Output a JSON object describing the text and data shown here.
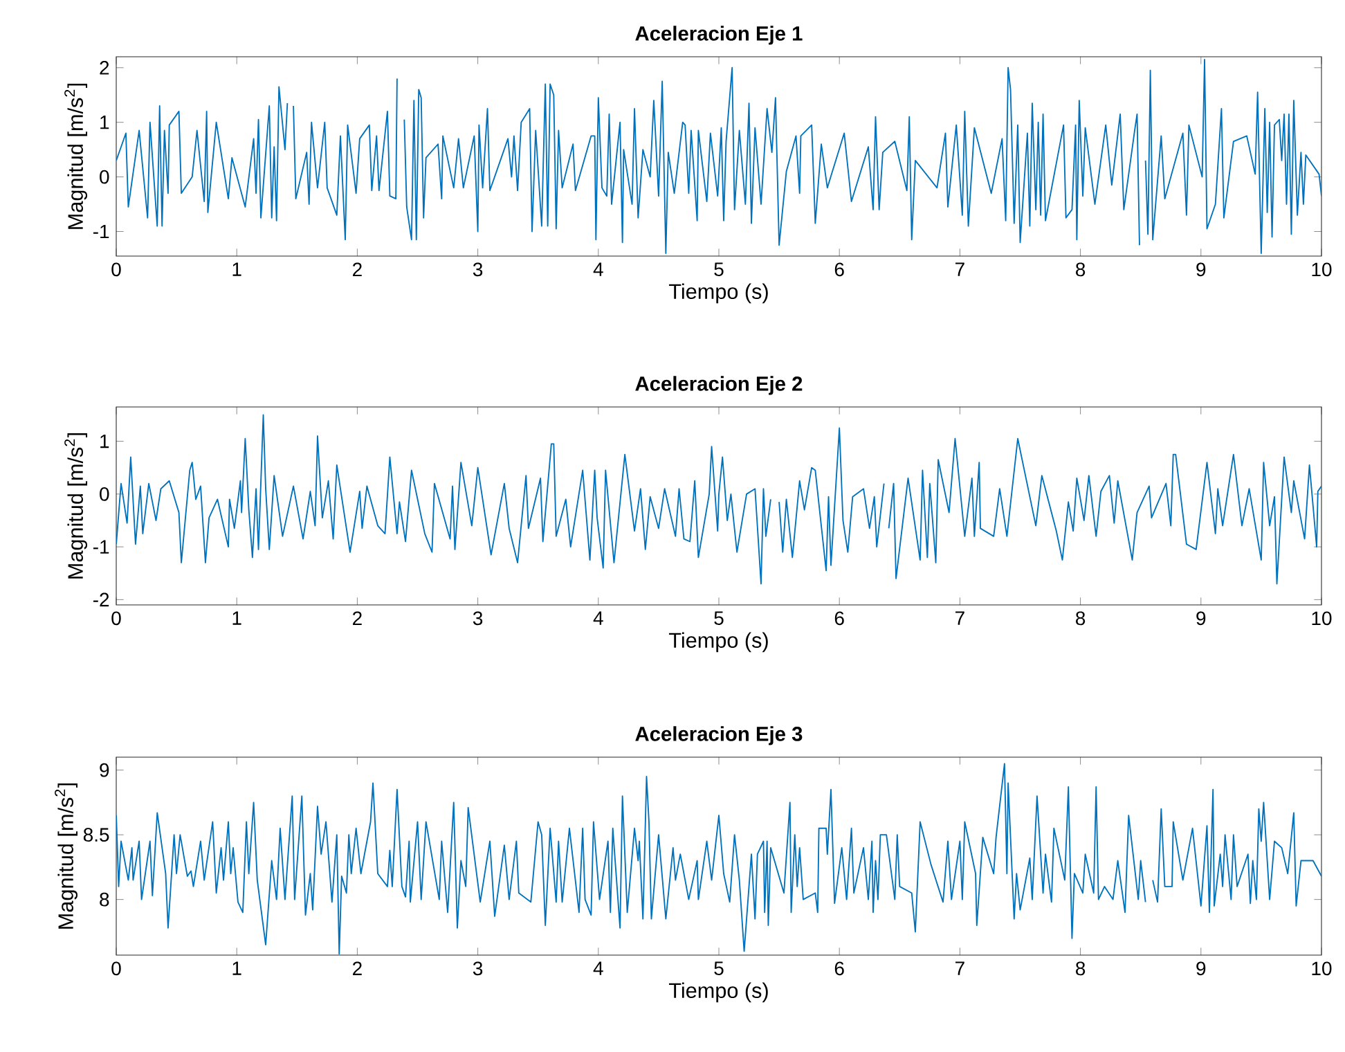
{
  "chart_data": [
    {
      "type": "line",
      "title": "Aceleracion Eje 1",
      "xlabel": "Tiempo (s)",
      "ylabel": "Magnitud [m/s$^{2}$]",
      "xlim": [
        0,
        10
      ],
      "ylim": [
        -1.45,
        2.2
      ],
      "xticks": [
        0,
        1,
        2,
        3,
        4,
        5,
        6,
        7,
        8,
        9,
        10
      ],
      "yticks": [
        -1,
        0,
        1,
        2
      ],
      "series": [
        {
          "color": "#0072bd",
          "x": [
            0.0,
            0.08,
            0.1,
            0.19,
            0.26,
            0.28,
            0.34,
            0.36,
            0.38,
            0.4,
            0.43,
            0.44,
            0.52,
            0.54,
            0.63,
            0.67,
            0.73,
            0.75,
            0.76,
            0.83,
            0.93,
            0.96,
            1.07,
            1.14,
            1.16,
            1.18,
            1.2,
            1.27,
            1.29,
            1.31,
            1.33,
            1.35,
            1.4,
            1.42,
            1.44,
            1.47,
            1.49,
            1.58,
            1.6,
            1.62,
            1.67,
            1.73,
            1.75,
            1.83,
            1.86,
            1.9,
            1.92,
            1.99,
            2.02,
            2.1,
            2.12,
            2.16,
            2.18,
            2.25,
            2.27,
            2.32,
            2.33,
            2.37,
            2.39,
            2.41,
            2.45,
            2.47,
            2.49,
            2.51,
            2.53,
            2.55,
            2.57,
            2.67,
            2.7,
            2.71,
            2.8,
            2.84,
            2.88,
            2.97,
            3.0,
            3.01,
            3.04,
            3.08,
            3.1,
            3.25,
            3.28,
            3.3,
            3.33,
            3.36,
            3.43,
            3.45,
            3.48,
            3.53,
            3.56,
            3.58,
            3.6,
            3.63,
            3.65,
            3.67,
            3.7,
            3.79,
            3.81,
            3.94,
            3.97,
            3.98,
            4.0,
            4.03,
            4.07,
            4.09,
            4.11,
            4.18,
            4.2,
            4.21,
            4.28,
            4.3,
            4.33,
            4.37,
            4.43,
            4.46,
            4.5,
            4.53,
            4.56,
            4.58,
            4.63,
            4.7,
            4.72,
            4.75,
            4.77,
            4.82,
            4.83,
            4.9,
            4.93,
            4.99,
            5.02,
            5.04,
            5.06,
            5.11,
            5.13,
            5.17,
            5.22,
            5.25,
            5.27,
            5.3,
            5.35,
            5.4,
            5.44,
            5.47,
            5.5,
            5.56,
            5.64,
            5.67,
            5.68,
            5.77,
            5.8,
            5.85,
            5.9,
            6.04,
            6.1,
            6.24,
            6.28,
            6.3,
            6.33,
            6.36,
            6.46,
            6.56,
            6.58,
            6.6,
            6.63,
            6.81,
            6.88,
            6.9,
            6.97,
            7.02,
            7.04,
            7.07,
            7.12,
            7.26,
            7.35,
            7.38,
            7.4,
            7.42,
            7.45,
            7.48,
            7.5,
            7.56,
            7.58,
            7.6,
            7.63,
            7.65,
            7.67,
            7.69,
            7.71,
            7.86,
            7.88,
            7.93,
            7.96,
            7.97,
            7.99,
            8.02,
            8.04,
            8.12,
            8.21,
            8.26,
            8.33,
            8.36,
            8.45,
            8.47,
            8.49,
            8.51,
            8.54,
            8.56,
            8.58,
            8.6,
            8.67,
            8.7,
            8.85,
            8.88,
            8.9,
            9.01,
            9.03,
            9.05,
            9.12,
            9.17,
            9.19,
            9.27,
            9.38,
            9.45,
            9.47,
            9.5,
            9.53,
            9.55,
            9.57,
            9.59,
            9.61,
            9.65,
            9.67,
            9.69,
            9.71,
            9.73,
            9.75,
            9.77,
            9.8,
            9.83,
            9.85,
            9.87,
            9.98,
            10.0
          ],
          "values": [
            0.3,
            0.8,
            -0.55,
            0.85,
            -0.75,
            1.0,
            -0.9,
            1.3,
            -0.9,
            0.85,
            -0.3,
            0.95,
            1.2,
            -0.3,
            0.0,
            0.85,
            -0.45,
            1.2,
            -0.65,
            1.0,
            -0.4,
            0.35,
            -0.55,
            0.7,
            -0.3,
            1.05,
            -0.75,
            1.3,
            -0.75,
            0.55,
            -0.8,
            1.65,
            0.5,
            1.35,
            null,
            1.3,
            -0.4,
            0.45,
            -0.5,
            1.0,
            -0.2,
            1.0,
            -0.2,
            -0.7,
            0.75,
            -1.15,
            0.95,
            -0.3,
            0.7,
            0.95,
            -0.25,
            0.75,
            -0.25,
            1.2,
            -0.35,
            -0.4,
            1.8,
            null,
            1.05,
            -0.55,
            -1.15,
            1.4,
            -1.15,
            1.6,
            1.45,
            -0.75,
            0.35,
            0.6,
            -0.4,
            0.75,
            -0.2,
            0.7,
            -0.2,
            0.75,
            -1.0,
            0.95,
            -0.2,
            1.25,
            -0.25,
            0.7,
            0.0,
            0.75,
            -0.25,
            1.0,
            1.25,
            -1.0,
            0.85,
            -0.9,
            1.7,
            -0.9,
            1.7,
            1.5,
            -0.95,
            0.85,
            -0.2,
            0.6,
            -0.25,
            0.75,
            0.75,
            -1.15,
            1.45,
            -0.2,
            -0.35,
            1.15,
            -0.5,
            1.0,
            -1.2,
            0.5,
            -0.5,
            1.25,
            -0.75,
            0.5,
            0.0,
            1.4,
            -0.35,
            1.75,
            -1.4,
            0.45,
            -0.3,
            1.0,
            0.95,
            -0.3,
            0.85,
            -0.8,
            0.85,
            -0.45,
            0.8,
            -0.35,
            0.9,
            -0.8,
            0.65,
            2.0,
            -0.6,
            0.85,
            -0.5,
            1.35,
            -0.85,
            0.9,
            -0.5,
            1.25,
            0.45,
            1.45,
            -1.25,
            0.1,
            0.75,
            -0.3,
            0.75,
            0.95,
            -0.85,
            0.6,
            -0.2,
            0.8,
            -0.45,
            0.55,
            -0.6,
            1.1,
            -0.6,
            0.45,
            0.65,
            -0.25,
            1.1,
            -1.15,
            0.3,
            -0.2,
            0.8,
            -0.55,
            0.95,
            -0.7,
            1.2,
            -0.9,
            0.9,
            -0.3,
            0.7,
            -0.8,
            2.0,
            1.6,
            -0.85,
            0.95,
            -1.2,
            0.8,
            -0.9,
            1.35,
            -0.6,
            1.0,
            -0.7,
            1.15,
            -0.8,
            0.95,
            -0.75,
            -0.6,
            0.95,
            -1.15,
            1.4,
            -0.35,
            0.9,
            -0.5,
            0.95,
            -0.15,
            1.15,
            -0.6,
            0.85,
            1.15,
            -1.25,
            null,
            0.3,
            -1.05,
            1.95,
            -1.15,
            0.75,
            -0.4,
            0.8,
            -0.7,
            0.95,
            0.0,
            2.15,
            -0.95,
            -0.5,
            1.25,
            -0.75,
            0.65,
            0.75,
            0.05,
            1.55,
            -1.4,
            1.25,
            -0.65,
            1.0,
            -1.1,
            0.95,
            1.05,
            0.3,
            1.15,
            -0.5,
            1.15,
            -1.05,
            1.4,
            -0.7,
            0.45,
            -0.5,
            0.4,
            0.05,
            -0.35
          ]
        }
      ]
    },
    {
      "type": "line",
      "title": "Aceleracion Eje 2",
      "xlabel": "Tiempo (s)",
      "ylabel": "Magnitud [m/s$^{2}$]",
      "xlim": [
        0,
        10
      ],
      "ylim": [
        -2.1,
        1.65
      ],
      "xticks": [
        0,
        1,
        2,
        3,
        4,
        5,
        6,
        7,
        8,
        9,
        10
      ],
      "yticks": [
        -2,
        -1,
        0,
        1
      ],
      "series": [
        {
          "color": "#0072bd",
          "x": [
            0.0,
            0.04,
            0.09,
            0.12,
            0.16,
            0.2,
            0.22,
            0.27,
            0.33,
            0.37,
            0.44,
            0.52,
            0.54,
            0.61,
            0.63,
            0.66,
            0.7,
            0.74,
            0.77,
            0.84,
            0.93,
            0.94,
            0.98,
            1.03,
            1.04,
            1.07,
            1.1,
            1.13,
            1.16,
            1.18,
            1.22,
            1.24,
            1.27,
            1.31,
            1.38,
            1.47,
            1.55,
            1.61,
            1.65,
            1.67,
            1.71,
            1.76,
            1.8,
            1.83,
            1.94,
            2.02,
            2.04,
            2.08,
            2.17,
            2.23,
            2.27,
            2.33,
            2.35,
            2.4,
            2.45,
            2.56,
            2.62,
            2.64,
            2.77,
            2.79,
            2.81,
            2.86,
            2.95,
            3.0,
            3.11,
            3.22,
            3.26,
            3.33,
            3.4,
            3.42,
            3.52,
            3.54,
            3.61,
            3.63,
            3.65,
            3.73,
            3.77,
            3.87,
            3.93,
            3.97,
            3.99,
            4.04,
            4.06,
            4.13,
            4.22,
            4.3,
            4.35,
            4.39,
            4.43,
            4.5,
            4.55,
            4.64,
            4.67,
            4.71,
            4.76,
            4.8,
            4.83,
            4.92,
            4.94,
            4.99,
            5.0,
            5.03,
            5.07,
            5.1,
            5.15,
            5.23,
            5.3,
            5.35,
            5.37,
            5.39,
            5.43,
            5.47,
            5.5,
            5.53,
            5.56,
            5.61,
            5.67,
            5.71,
            5.77,
            5.8,
            5.89,
            5.91,
            5.93,
            6.0,
            6.03,
            6.07,
            6.11,
            6.2,
            6.25,
            6.29,
            6.31,
            6.37,
            6.39,
            6.41,
            6.45,
            6.47,
            6.57,
            6.67,
            6.69,
            6.73,
            6.75,
            6.8,
            6.82,
            6.91,
            6.96,
            7.04,
            7.1,
            7.12,
            7.16,
            7.17,
            7.28,
            7.33,
            7.39,
            7.48,
            7.63,
            7.68,
            7.8,
            7.85,
            7.9,
            7.94,
            7.97,
            8.03,
            8.07,
            8.13,
            8.17,
            8.24,
            8.28,
            8.31,
            8.43,
            8.47,
            8.57,
            8.59,
            8.71,
            8.75,
            8.77,
            8.79,
            8.88,
            8.96,
            9.05,
            9.12,
            9.14,
            9.18,
            9.27,
            9.34,
            9.4,
            9.5,
            9.52,
            9.57,
            9.61,
            9.63,
            9.69,
            9.75,
            9.77,
            9.86,
            9.9,
            9.96,
            9.97,
            10.0
          ],
          "values": [
            -0.95,
            0.2,
            -0.55,
            0.7,
            -0.95,
            0.15,
            -0.75,
            0.2,
            -0.5,
            0.1,
            0.25,
            -0.35,
            -1.3,
            0.45,
            0.6,
            -0.1,
            0.15,
            -1.3,
            -0.45,
            -0.1,
            -1.0,
            -0.1,
            -0.65,
            0.25,
            -0.35,
            1.05,
            -0.3,
            -1.2,
            0.1,
            -1.05,
            1.5,
            0.1,
            -1.05,
            0.35,
            -0.8,
            0.15,
            -0.85,
            0.05,
            -0.6,
            1.1,
            -0.45,
            0.25,
            -0.85,
            0.55,
            -1.1,
            0.05,
            -0.65,
            0.15,
            -0.6,
            -0.75,
            0.7,
            -0.75,
            -0.15,
            -0.9,
            0.45,
            -0.75,
            -1.1,
            0.2,
            -0.85,
            0.15,
            -1.05,
            0.6,
            -0.6,
            0.5,
            -1.15,
            0.2,
            -0.65,
            -1.3,
            0.35,
            -0.65,
            0.3,
            -0.9,
            0.95,
            0.95,
            -0.8,
            -0.1,
            -1.0,
            0.45,
            -1.25,
            0.45,
            -0.45,
            -1.4,
            0.45,
            -1.3,
            0.75,
            -0.7,
            0.1,
            -1.05,
            -0.05,
            -0.65,
            0.1,
            -0.8,
            0.1,
            -0.85,
            -0.9,
            0.25,
            -1.2,
            0.0,
            0.9,
            -0.7,
            0.0,
            0.7,
            -0.5,
            0.0,
            -1.1,
            0.0,
            0.1,
            -1.7,
            0.1,
            -0.8,
            -0.1,
            null,
            -0.15,
            -1.1,
            -0.1,
            -1.2,
            0.25,
            -0.3,
            0.5,
            0.45,
            -1.45,
            -0.05,
            -1.35,
            1.25,
            -0.5,
            -1.1,
            -0.05,
            0.1,
            -0.65,
            -0.05,
            -1.0,
            0.2,
            null,
            -0.65,
            0.2,
            -1.6,
            0.3,
            -1.25,
            0.45,
            -1.2,
            0.2,
            -1.3,
            0.65,
            -0.35,
            1.05,
            -0.8,
            0.3,
            -0.8,
            0.6,
            -0.65,
            -0.8,
            0.1,
            -0.8,
            1.05,
            -0.6,
            0.35,
            -0.7,
            -1.25,
            -0.15,
            -0.7,
            0.3,
            -0.5,
            0.35,
            -0.8,
            0.05,
            0.35,
            -0.55,
            0.25,
            -1.25,
            -0.35,
            0.15,
            -0.45,
            0.2,
            -0.6,
            0.75,
            0.75,
            -0.95,
            -1.05,
            0.6,
            -0.75,
            0.1,
            -0.6,
            0.75,
            -0.6,
            0.1,
            -1.25,
            0.6,
            -0.6,
            -0.05,
            -1.7,
            0.7,
            -0.35,
            0.25,
            -0.85,
            0.55,
            -1.0,
            0.05,
            0.15
          ]
        }
      ]
    },
    {
      "type": "line",
      "title": "Aceleracion Eje 3",
      "xlabel": "Tiempo (s)",
      "ylabel": "Magnitud [m/s$^{2}$]",
      "xlim": [
        0,
        10
      ],
      "ylim": [
        7.57,
        9.1
      ],
      "xticks": [
        0,
        1,
        2,
        3,
        4,
        5,
        6,
        7,
        8,
        9,
        10
      ],
      "yticks": [
        8,
        8.5,
        9
      ],
      "series": [
        {
          "color": "#0072bd",
          "x": [
            0.0,
            0.02,
            0.04,
            0.1,
            0.13,
            0.14,
            0.19,
            0.21,
            0.28,
            0.3,
            0.34,
            0.41,
            0.43,
            0.48,
            0.5,
            0.53,
            0.59,
            0.62,
            0.64,
            0.7,
            0.73,
            0.8,
            0.83,
            0.87,
            0.89,
            0.93,
            0.95,
            0.97,
            1.01,
            1.05,
            1.08,
            1.1,
            1.14,
            1.17,
            1.24,
            1.29,
            1.33,
            1.36,
            1.4,
            1.46,
            1.48,
            1.54,
            1.57,
            1.61,
            1.63,
            1.67,
            1.7,
            1.74,
            1.79,
            1.83,
            1.85,
            1.87,
            1.91,
            1.93,
            1.95,
            1.99,
            2.03,
            2.11,
            2.13,
            2.17,
            2.25,
            2.27,
            2.29,
            2.33,
            2.37,
            2.4,
            2.43,
            2.44,
            2.5,
            2.53,
            2.57,
            2.68,
            2.7,
            2.75,
            2.8,
            2.83,
            2.86,
            2.9,
            2.92,
            3.02,
            3.1,
            3.14,
            3.22,
            3.26,
            3.32,
            3.34,
            3.44,
            3.5,
            3.53,
            3.56,
            3.6,
            3.65,
            3.67,
            3.7,
            3.76,
            3.84,
            3.87,
            3.89,
            3.94,
            3.96,
            4.01,
            4.08,
            4.1,
            4.12,
            4.18,
            4.2,
            4.24,
            4.3,
            4.33,
            4.34,
            4.37,
            4.4,
            4.42,
            4.44,
            4.5,
            4.56,
            4.62,
            4.64,
            4.68,
            4.75,
            4.82,
            4.83,
            4.9,
            4.94,
            5.0,
            5.04,
            5.09,
            5.13,
            5.17,
            5.21,
            5.27,
            5.3,
            5.32,
            5.37,
            5.38,
            5.4,
            5.41,
            5.43,
            5.54,
            5.59,
            5.6,
            5.63,
            5.65,
            5.67,
            5.7,
            5.8,
            5.82,
            5.83,
            5.89,
            5.9,
            5.93,
            5.96,
            6.02,
            6.06,
            6.1,
            6.12,
            6.2,
            6.24,
            6.27,
            6.28,
            6.3,
            6.32,
            6.34,
            6.39,
            6.46,
            6.48,
            6.5,
            6.6,
            6.63,
            6.67,
            6.76,
            6.86,
            6.9,
            6.93,
            7.0,
            7.02,
            7.04,
            7.13,
            7.14,
            7.19,
            7.28,
            7.3,
            7.37,
            7.39,
            7.4,
            7.45,
            7.47,
            7.5,
            7.58,
            7.6,
            7.64,
            7.69,
            7.71,
            7.76,
            7.78,
            7.87,
            7.9,
            7.93,
            7.95,
            8.02,
            8.04,
            8.11,
            8.13,
            8.15,
            8.2,
            8.27,
            8.31,
            8.37,
            8.4,
            8.48,
            8.5,
            8.54,
            8.58,
            8.6,
            8.64,
            8.67,
            8.7,
            8.76,
            8.77,
            8.85,
            8.93,
            9.0,
            9.05,
            9.07,
            9.1,
            9.11,
            9.16,
            9.18,
            9.2,
            9.25,
            9.27,
            9.3,
            9.39,
            9.41,
            9.43,
            9.46,
            9.48,
            9.5,
            9.52,
            9.57,
            9.61,
            9.67,
            9.72,
            9.77,
            9.79,
            9.83,
            9.93,
            10.0
          ],
          "values": [
            8.65,
            8.1,
            8.45,
            8.15,
            8.4,
            8.15,
            8.45,
            8.0,
            8.45,
            8.03,
            8.67,
            8.2,
            7.78,
            8.5,
            8.2,
            8.5,
            8.18,
            8.22,
            8.1,
            8.45,
            8.15,
            8.6,
            8.05,
            8.4,
            8.15,
            8.6,
            8.2,
            8.4,
            7.98,
            7.9,
            8.6,
            8.2,
            8.75,
            8.15,
            7.65,
            8.3,
            8.0,
            8.55,
            8.0,
            8.8,
            8.0,
            8.8,
            7.88,
            8.2,
            7.92,
            8.72,
            8.35,
            8.6,
            7.98,
            8.5,
            7.58,
            8.18,
            8.05,
            8.5,
            8.2,
            8.55,
            8.2,
            8.6,
            8.9,
            8.2,
            8.1,
            8.38,
            8.1,
            8.85,
            8.1,
            8.02,
            8.45,
            7.98,
            8.6,
            8.0,
            8.6,
            8.0,
            8.45,
            7.9,
            8.75,
            7.78,
            8.3,
            8.1,
            8.71,
            7.98,
            8.45,
            7.87,
            8.42,
            8.0,
            8.45,
            8.05,
            7.98,
            8.6,
            8.5,
            7.8,
            8.55,
            7.98,
            8.45,
            7.98,
            8.55,
            7.9,
            8.55,
            8.0,
            7.88,
            8.6,
            8.0,
            8.45,
            7.9,
            8.55,
            7.78,
            8.8,
            7.9,
            8.55,
            8.3,
            8.45,
            7.85,
            8.95,
            8.6,
            7.85,
            8.5,
            7.85,
            8.4,
            8.15,
            8.35,
            8.0,
            8.3,
            8.0,
            8.45,
            8.15,
            8.65,
            8.2,
            7.98,
            8.5,
            8.15,
            7.6,
            8.35,
            7.85,
            8.35,
            8.45,
            7.9,
            8.45,
            7.8,
            8.4,
            8.05,
            8.75,
            7.9,
            8.5,
            8.1,
            8.4,
            8.0,
            8.05,
            7.9,
            8.55,
            8.55,
            8.35,
            8.85,
            7.97,
            8.4,
            8.0,
            8.55,
            8.05,
            8.4,
            8.0,
            8.45,
            7.9,
            8.3,
            8.0,
            8.5,
            8.5,
            8.0,
            8.5,
            8.1,
            8.05,
            7.75,
            8.6,
            8.27,
            7.98,
            8.45,
            8.0,
            8.45,
            8.0,
            8.6,
            8.2,
            7.8,
            8.48,
            8.2,
            8.48,
            9.05,
            8.2,
            8.9,
            7.85,
            8.2,
            7.92,
            8.32,
            8.0,
            8.8,
            8.05,
            8.35,
            7.98,
            8.55,
            8.15,
            8.87,
            7.7,
            8.2,
            8.05,
            8.35,
            8.05,
            8.87,
            8.0,
            8.1,
            8.0,
            8.3,
            7.9,
            8.65,
            8.0,
            8.3,
            7.98,
            null,
            8.15,
            7.98,
            8.7,
            8.1,
            8.1,
            8.6,
            8.15,
            8.55,
            7.95,
            8.57,
            7.9,
            8.85,
            7.95,
            8.35,
            8.1,
            8.5,
            8.0,
            8.5,
            8.1,
            8.35,
            7.97,
            8.3,
            8.0,
            8.7,
            8.45,
            8.75,
            8.0,
            8.45,
            8.4,
            8.2,
            8.67,
            7.95,
            8.3,
            8.3,
            8.18
          ]
        }
      ]
    }
  ]
}
